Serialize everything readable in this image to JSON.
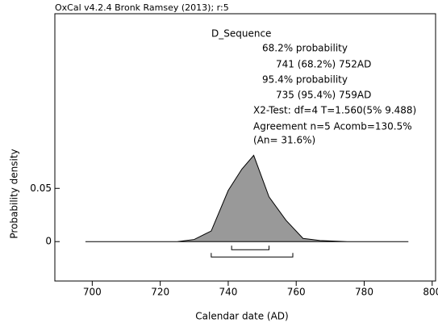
{
  "chart_data": {
    "type": "density",
    "header": "OxCal v4.2.4 Bronk Ramsey (2013); r:5",
    "title": "D_Sequence",
    "x_label": "Calendar date (AD)",
    "y_label": "Probability density",
    "x": [
      698,
      725,
      730,
      735,
      740,
      744,
      747.5,
      752,
      757,
      762,
      767,
      775,
      793
    ],
    "values": [
      0,
      0,
      0.002,
      0.01,
      0.048,
      0.068,
      0.081,
      0.042,
      0.02,
      0.003,
      0.001,
      0,
      0
    ],
    "color": "#999999",
    "xlim": [
      689,
      801
    ],
    "xticks": [
      700,
      720,
      740,
      760,
      780,
      800
    ],
    "ylim": [
      -0.037,
      0.214
    ],
    "yticks": [
      0,
      0.05
    ],
    "ranges": [
      {
        "probability_label": "68.2% probability",
        "range_label": "741 (68.2%) 752AD",
        "from": 741,
        "to": 752
      },
      {
        "probability_label": "95.4% probability",
        "range_label": "735 (95.4%) 759AD",
        "from": 735,
        "to": 759
      }
    ],
    "annotations": [
      "X2-Test: df=4 T=1.560(5% 9.488)",
      "Agreement n=5 Acomb=130.5%",
      "(An= 31.6%)"
    ]
  }
}
